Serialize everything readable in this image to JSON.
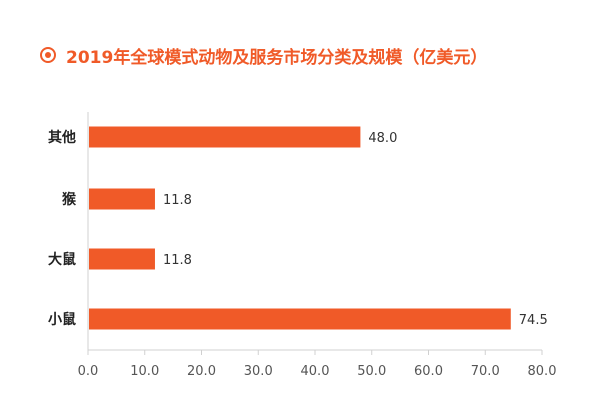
{
  "title": "2019年全球模式动物及服务市场分类及规模（亿美元）",
  "colors": {
    "bar": "#f05a28",
    "accent": "#f05a28",
    "axis": "#d0d0d0"
  },
  "chart_data": {
    "type": "bar",
    "orientation": "horizontal",
    "title": "2019年全球模式动物及服务市场分类及规模（亿美元）",
    "categories": [
      "其他",
      "猴",
      "大鼠",
      "小鼠"
    ],
    "values": [
      48.0,
      11.8,
      11.8,
      74.5
    ],
    "value_labels": [
      "48.0",
      "11.8",
      "11.8",
      "74.5"
    ],
    "xlim": [
      0,
      80
    ],
    "xticks": [
      0,
      10,
      20,
      30,
      40,
      50,
      60,
      70,
      80
    ],
    "xtick_labels": [
      "0.0",
      "10.0",
      "20.0",
      "30.0",
      "40.0",
      "50.0",
      "60.0",
      "70.0",
      "80.0"
    ],
    "xlabel": "",
    "ylabel": "",
    "grid": false,
    "legend": "none"
  }
}
